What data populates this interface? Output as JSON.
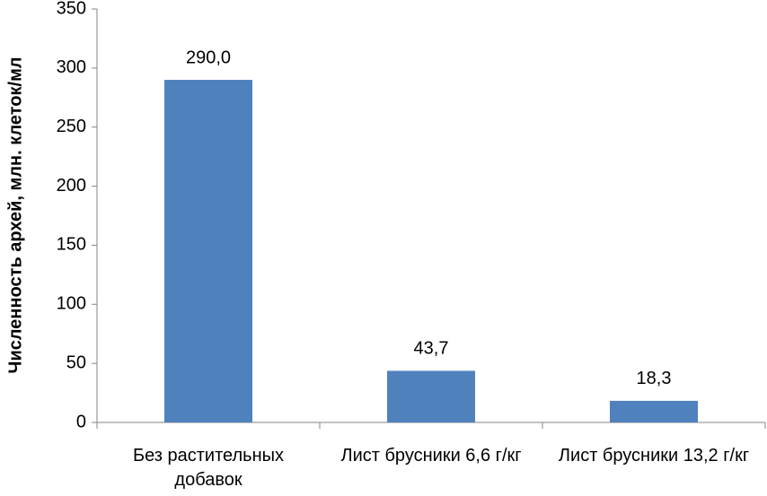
{
  "chart_data": {
    "type": "bar",
    "y_label": "Численность архей, млн. клеток/мл",
    "categories": [
      "Без растительных добавок",
      "Лист брусники 6,6 г/кг",
      "Лист брусники 13,2 г/кг"
    ],
    "values": [
      290,
      43.7,
      18.3
    ],
    "value_labels": [
      "290,0",
      "43,7",
      "18,3"
    ],
    "color": "#4f81bd",
    "ylim": [
      0,
      350
    ],
    "yticks": [
      0,
      50,
      100,
      150,
      200,
      250,
      300,
      350
    ],
    "grid": false
  }
}
